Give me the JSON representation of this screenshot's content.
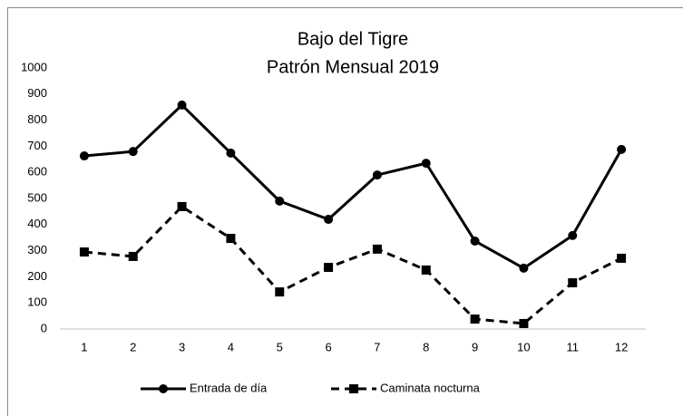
{
  "chart_data": {
    "type": "line",
    "title": "Bajo del Tigre",
    "subtitle": "Patrón Mensual 2019",
    "categories": [
      1,
      2,
      3,
      4,
      5,
      6,
      7,
      8,
      9,
      10,
      11,
      12
    ],
    "series": [
      {
        "name": "Entrada de día",
        "color": "#000000",
        "dash": "solid",
        "marker": "circle",
        "values": [
          663,
          680,
          858,
          674,
          490,
          420,
          590,
          635,
          337,
          233,
          358,
          688
        ]
      },
      {
        "name": "Caminata nocturna",
        "color": "#000000",
        "dash": "dashed",
        "marker": "square",
        "values": [
          295,
          278,
          469,
          347,
          142,
          236,
          306,
          226,
          38,
          21,
          177,
          271
        ]
      }
    ],
    "ylim": [
      0,
      1000
    ],
    "yticks": [
      0,
      100,
      200,
      300,
      400,
      500,
      600,
      700,
      800,
      900,
      1000
    ],
    "grid": false,
    "legend": "bottom"
  }
}
